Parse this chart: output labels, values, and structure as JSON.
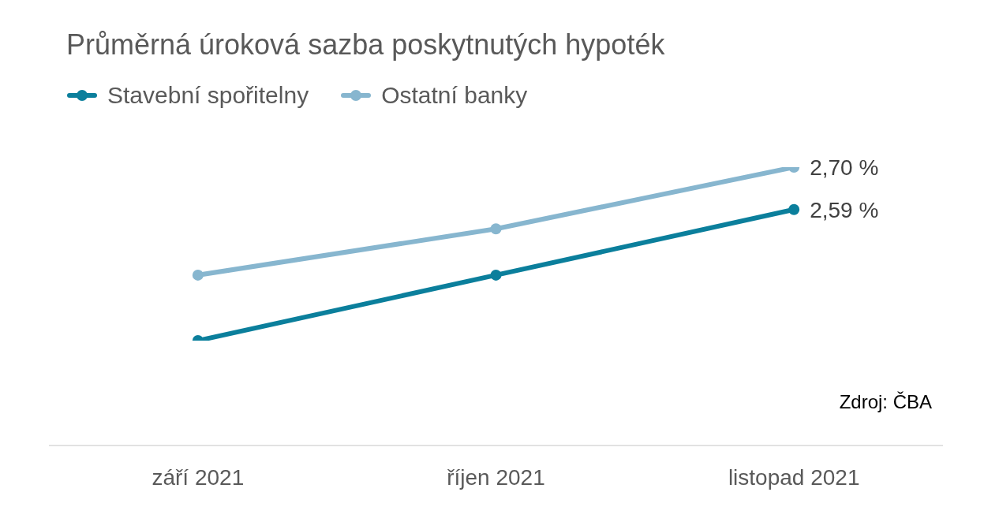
{
  "chart_data": {
    "type": "line",
    "title": "Průměrná úroková sazba poskytnutých hypoték",
    "categories": [
      "září 2021",
      "říjen 2021",
      "listopad 2021"
    ],
    "series": [
      {
        "name": "Stavební spořitelny",
        "color": "#0b7f9c",
        "values": [
          2.25,
          2.42,
          2.59
        ],
        "value_labels": [
          null,
          null,
          "2,59 %"
        ]
      },
      {
        "name": "Ostatní banky",
        "color": "#87b6cf",
        "values": [
          2.42,
          2.54,
          2.7
        ],
        "value_labels": [
          null,
          null,
          "2,70 %"
        ]
      }
    ],
    "tick_labels": "x",
    "grid": false,
    "legend": "top left",
    "marker": "circle",
    "line_style": "solid",
    "annotations": [
      "Zdroj: ČBA"
    ]
  }
}
